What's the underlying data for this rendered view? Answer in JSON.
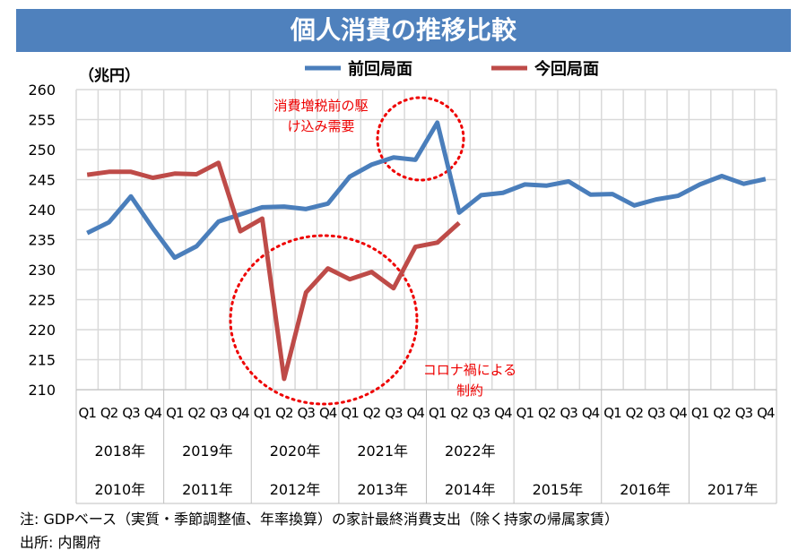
{
  "chart_data": {
    "type": "line",
    "title": "個人消費の推移比較",
    "ylabel": "（兆円）",
    "ylim": [
      210,
      260
    ],
    "yticks": [
      210,
      215,
      220,
      225,
      230,
      235,
      240,
      245,
      250,
      255,
      260
    ],
    "quarter_labels": [
      "Q1",
      "Q2",
      "Q3",
      "Q4"
    ],
    "years_current": [
      "2018年",
      "2019年",
      "2020年",
      "2021年",
      "2022年"
    ],
    "years_previous": [
      "2010年",
      "2011年",
      "2012年",
      "2013年",
      "2014年",
      "2015年",
      "2016年",
      "2017年"
    ],
    "grid": true,
    "legend_position": "top",
    "series": [
      {
        "name": "前回局面",
        "color": "#4a7ebb",
        "values": [
          236.1,
          237.9,
          242.2,
          236.9,
          232.0,
          233.9,
          238.0,
          239.2,
          240.4,
          240.5,
          240.1,
          241.0,
          245.5,
          247.5,
          248.7,
          248.3,
          254.5,
          239.5,
          242.4,
          242.8,
          244.2,
          244.0,
          244.7,
          242.5,
          242.6,
          240.7,
          241.7,
          242.3,
          244.2,
          245.6,
          244.3,
          245.1
        ]
      },
      {
        "name": "今回局面",
        "color": "#be4b48",
        "values": [
          245.8,
          246.3,
          246.3,
          245.3,
          246.0,
          245.9,
          247.8,
          236.4,
          238.5,
          211.8,
          226.2,
          230.2,
          228.4,
          229.6,
          226.9,
          233.8,
          234.5,
          237.8
        ]
      }
    ],
    "annotations": [
      {
        "text1": "消費増税前の駆",
        "text2": "け込み需要"
      },
      {
        "text1": "コロナ禍による",
        "text2": "制約"
      }
    ]
  },
  "notes": {
    "line1": "注: GDPベース（実質・季節調整値、年率換算）の家計最終消費支出（除く持家の帰属家賃）",
    "line2": "出所: 内閣府"
  }
}
